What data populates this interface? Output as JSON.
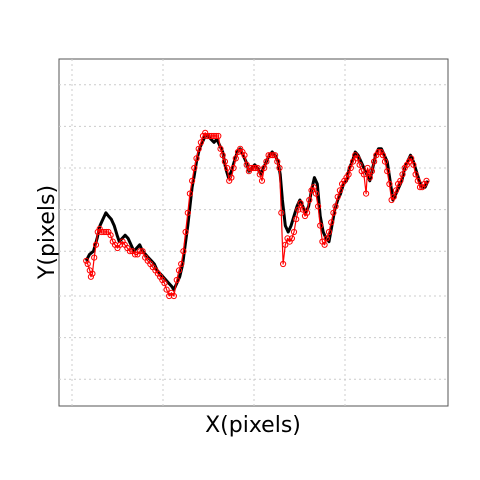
{
  "chart_data": {
    "type": "scatter",
    "xlabel": "X(pixels)",
    "ylabel": "Y(pixels)",
    "xlim": [
      0,
      100
    ],
    "ylim": [
      0,
      100
    ],
    "grid": true,
    "x_grid": [
      0,
      25,
      50,
      75
    ],
    "y_grid": [
      4,
      17,
      30,
      44,
      57,
      70,
      83,
      96
    ],
    "series": [
      {
        "color": "#000000",
        "mark": "line",
        "points": [
          [
            3.9,
            41
          ],
          [
            4.8,
            43
          ],
          [
            5.9,
            44
          ],
          [
            6.9,
            48
          ],
          [
            7.7,
            52
          ],
          [
            8.5,
            54
          ],
          [
            9.3,
            56
          ],
          [
            10,
            55
          ],
          [
            10.8,
            54
          ],
          [
            11.6,
            52
          ],
          [
            12.4,
            49
          ],
          [
            13,
            47
          ],
          [
            13.8,
            48
          ],
          [
            14.6,
            49
          ],
          [
            15.4,
            48
          ],
          [
            16.2,
            46
          ],
          [
            17,
            44
          ],
          [
            17.8,
            45
          ],
          [
            18.6,
            46
          ],
          [
            19.4,
            44
          ],
          [
            20.2,
            43
          ],
          [
            21,
            42
          ],
          [
            21.8,
            41
          ],
          [
            22.6,
            40
          ],
          [
            23.4,
            38
          ],
          [
            24.2,
            37
          ],
          [
            25,
            36
          ],
          [
            25.8,
            35
          ],
          [
            26.6,
            34
          ],
          [
            27.4,
            33
          ],
          [
            28,
            32
          ],
          [
            28.8,
            34
          ],
          [
            29.6,
            36
          ],
          [
            30.4,
            40
          ],
          [
            31.1,
            46
          ],
          [
            31.8,
            52
          ],
          [
            32.5,
            59
          ],
          [
            33,
            64
          ],
          [
            33.5,
            67
          ],
          [
            34.2,
            72
          ],
          [
            35,
            76
          ],
          [
            35.8,
            78
          ],
          [
            36.6,
            80
          ],
          [
            37.4,
            80
          ],
          [
            38.2,
            79
          ],
          [
            39,
            78
          ],
          [
            39.8,
            79
          ],
          [
            40.6,
            77
          ],
          [
            41.4,
            75
          ],
          [
            42.2,
            70
          ],
          [
            43,
            67
          ],
          [
            43.8,
            69
          ],
          [
            44.6,
            72
          ],
          [
            45.4,
            75
          ],
          [
            46.2,
            76
          ],
          [
            47,
            74
          ],
          [
            47.8,
            72
          ],
          [
            48.6,
            69
          ],
          [
            49.4,
            70
          ],
          [
            50.2,
            71
          ],
          [
            51,
            70
          ],
          [
            51.8,
            68
          ],
          [
            52.6,
            70
          ],
          [
            53.4,
            72
          ],
          [
            54.2,
            74
          ],
          [
            55,
            75
          ],
          [
            55.8,
            74
          ],
          [
            56.6,
            72
          ],
          [
            57.2,
            68
          ],
          [
            57.8,
            60
          ],
          [
            58.6,
            52
          ],
          [
            59.4,
            50
          ],
          [
            60.2,
            52
          ],
          [
            61,
            55
          ],
          [
            61.8,
            58
          ],
          [
            62.6,
            60
          ],
          [
            63.4,
            58
          ],
          [
            64.2,
            56
          ],
          [
            65,
            58
          ],
          [
            65.8,
            63
          ],
          [
            66.6,
            67
          ],
          [
            67.4,
            65
          ],
          [
            68.2,
            55
          ],
          [
            69,
            50
          ],
          [
            69.8,
            48
          ],
          [
            70.6,
            47
          ],
          [
            71.4,
            52
          ],
          [
            72.2,
            57
          ],
          [
            73,
            60
          ],
          [
            73.8,
            62
          ],
          [
            74.6,
            65
          ],
          [
            75.4,
            66
          ],
          [
            76.2,
            70
          ],
          [
            77,
            72
          ],
          [
            77.8,
            75
          ],
          [
            78.6,
            74
          ],
          [
            79.4,
            72
          ],
          [
            80.2,
            70
          ],
          [
            81,
            68
          ],
          [
            81.8,
            66
          ],
          [
            82.6,
            70
          ],
          [
            83.4,
            74
          ],
          [
            84.2,
            76
          ],
          [
            85,
            76
          ],
          [
            85.8,
            74
          ],
          [
            86.6,
            72
          ],
          [
            87.4,
            66
          ],
          [
            88.2,
            60
          ],
          [
            89,
            62
          ],
          [
            89.8,
            64
          ],
          [
            90.6,
            66
          ],
          [
            91.4,
            70
          ],
          [
            92.2,
            72
          ],
          [
            93,
            74
          ],
          [
            93.8,
            72
          ],
          [
            94.6,
            69
          ],
          [
            95.4,
            66
          ],
          [
            96.2,
            64
          ],
          [
            97,
            64
          ],
          [
            97.8,
            66
          ]
        ]
      },
      {
        "color": "#ff0000",
        "mark": "circle-line",
        "points": [
          [
            3.9,
            41
          ],
          [
            4.3,
            40
          ],
          [
            4.9,
            38
          ],
          [
            5.2,
            36
          ],
          [
            5.6,
            37
          ],
          [
            6.1,
            42
          ],
          [
            6.6,
            46
          ],
          [
            7.1,
            50
          ],
          [
            7.6,
            51
          ],
          [
            8.1,
            50
          ],
          [
            8.8,
            50
          ],
          [
            9.4,
            50
          ],
          [
            10,
            50
          ],
          [
            10.6,
            49
          ],
          [
            11.2,
            47
          ],
          [
            11.8,
            46
          ],
          [
            12.5,
            45
          ],
          [
            13.2,
            46
          ],
          [
            13.9,
            47
          ],
          [
            14.5,
            46
          ],
          [
            15.2,
            45
          ],
          [
            15.9,
            44
          ],
          [
            16.6,
            44
          ],
          [
            17.3,
            43
          ],
          [
            18,
            43
          ],
          [
            18.7,
            44
          ],
          [
            19.4,
            44
          ],
          [
            20.1,
            42
          ],
          [
            20.8,
            41
          ],
          [
            21.5,
            40
          ],
          [
            22.2,
            39
          ],
          [
            22.9,
            38
          ],
          [
            23.6,
            37
          ],
          [
            24.2,
            36
          ],
          [
            24.8,
            35
          ],
          [
            25.4,
            34
          ],
          [
            26,
            32
          ],
          [
            26.7,
            30
          ],
          [
            27.3,
            31
          ],
          [
            28,
            30
          ],
          [
            28.8,
            35
          ],
          [
            29.4,
            38
          ],
          [
            30,
            40
          ],
          [
            30.6,
            44
          ],
          [
            31.2,
            50
          ],
          [
            31.8,
            56
          ],
          [
            32.4,
            62
          ],
          [
            33,
            66
          ],
          [
            33.6,
            70
          ],
          [
            34.2,
            73
          ],
          [
            34.8,
            76
          ],
          [
            35.4,
            78
          ],
          [
            36,
            80
          ],
          [
            36.6,
            81
          ],
          [
            37.2,
            80
          ],
          [
            37.8,
            80
          ],
          [
            38.4,
            80
          ],
          [
            39,
            80
          ],
          [
            39.6,
            80
          ],
          [
            40.2,
            80
          ],
          [
            40.8,
            76
          ],
          [
            41.4,
            74
          ],
          [
            42,
            72
          ],
          [
            42.6,
            70
          ],
          [
            43.2,
            66
          ],
          [
            43.8,
            67
          ],
          [
            44.4,
            70
          ],
          [
            45,
            73
          ],
          [
            45.6,
            75
          ],
          [
            46.2,
            76
          ],
          [
            46.8,
            75
          ],
          [
            47.4,
            74
          ],
          [
            48,
            71
          ],
          [
            48.6,
            69
          ],
          [
            49.2,
            70
          ],
          [
            49.8,
            70
          ],
          [
            50.4,
            70
          ],
          [
            51,
            70
          ],
          [
            51.6,
            68
          ],
          [
            52.2,
            66
          ],
          [
            52.8,
            70
          ],
          [
            53.4,
            72
          ],
          [
            54,
            74
          ],
          [
            54.6,
            74
          ],
          [
            55.2,
            74
          ],
          [
            55.8,
            74
          ],
          [
            56.4,
            72
          ],
          [
            57,
            70
          ],
          [
            57.5,
            56
          ],
          [
            58,
            40
          ],
          [
            58.6,
            46
          ],
          [
            59.2,
            48
          ],
          [
            59.8,
            47
          ],
          [
            60.4,
            48
          ],
          [
            61,
            50
          ],
          [
            61.6,
            54
          ],
          [
            62.2,
            57
          ],
          [
            62.8,
            59
          ],
          [
            63.4,
            57
          ],
          [
            64,
            55
          ],
          [
            64.6,
            56
          ],
          [
            65.2,
            60
          ],
          [
            65.8,
            63
          ],
          [
            66.4,
            64
          ],
          [
            67,
            62
          ],
          [
            67.6,
            58
          ],
          [
            68.2,
            52
          ],
          [
            68.8,
            47
          ],
          [
            69.4,
            46
          ],
          [
            70,
            48
          ],
          [
            70.6,
            50
          ],
          [
            71.2,
            53
          ],
          [
            71.8,
            56
          ],
          [
            72.4,
            58
          ],
          [
            73,
            61
          ],
          [
            73.6,
            63
          ],
          [
            74.2,
            65
          ],
          [
            74.8,
            66
          ],
          [
            75.4,
            67
          ],
          [
            76,
            68
          ],
          [
            76.6,
            70
          ],
          [
            77.2,
            72
          ],
          [
            77.8,
            74
          ],
          [
            78.4,
            73
          ],
          [
            79,
            71
          ],
          [
            79.6,
            69
          ],
          [
            80.2,
            68
          ],
          [
            80.8,
            62
          ],
          [
            81.2,
            70
          ],
          [
            81.8,
            67
          ],
          [
            82.4,
            69
          ],
          [
            83,
            72
          ],
          [
            83.6,
            74
          ],
          [
            84.2,
            75
          ],
          [
            84.8,
            75
          ],
          [
            85.4,
            74
          ],
          [
            86,
            72
          ],
          [
            86.6,
            69
          ],
          [
            87.2,
            65
          ],
          [
            87.8,
            60
          ],
          [
            88.4,
            61
          ],
          [
            89,
            63
          ],
          [
            89.6,
            65
          ],
          [
            90.2,
            66
          ],
          [
            90.8,
            68
          ],
          [
            91.4,
            70
          ],
          [
            92,
            71
          ],
          [
            92.6,
            72
          ],
          [
            93.2,
            73
          ],
          [
            93.8,
            71
          ],
          [
            94.4,
            68
          ],
          [
            95,
            66
          ],
          [
            95.6,
            64
          ],
          [
            96.2,
            64
          ],
          [
            96.8,
            65
          ],
          [
            97.4,
            66
          ]
        ]
      }
    ]
  }
}
